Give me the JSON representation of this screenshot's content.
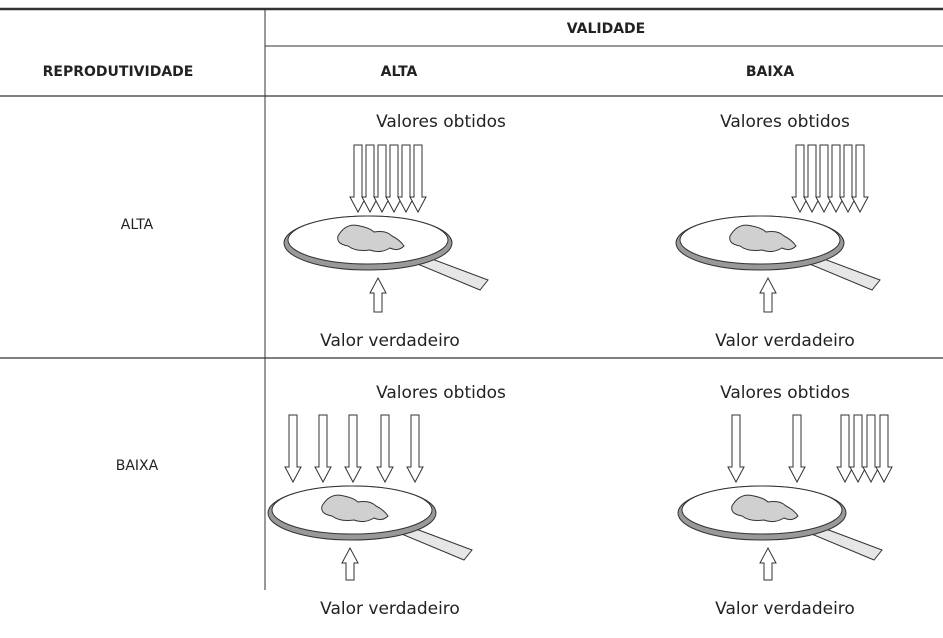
{
  "table": {
    "header": "VALIDADE",
    "columns": [
      "REPRODUTIVIDADE",
      "ALTA",
      "BAIXA"
    ],
    "rows": [
      {
        "label": "ALTA",
        "cells": [
          {
            "top": "Valores obtidos",
            "bottom": "Valor verdadeiro"
          },
          {
            "top": "Valores obtidos",
            "bottom": "Valor verdadeiro"
          }
        ]
      },
      {
        "label": "BAIXA",
        "cells": [
          {
            "top": "Valores obtidos",
            "bottom": "Valor verdadeiro"
          },
          {
            "top": "Valores obtidos",
            "bottom": "Valor verdadeiro"
          }
        ]
      }
    ]
  }
}
